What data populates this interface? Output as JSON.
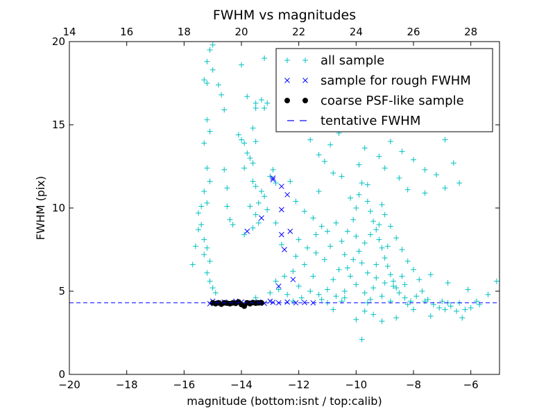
{
  "chart_data": {
    "type": "scatter",
    "title": "FWHM vs magnitudes",
    "xlabel": "magnitude (bottom:isnt / top:calib)",
    "ylabel": "FWHM (pix)",
    "xlim": [
      -20,
      -5
    ],
    "ylim": [
      0,
      20
    ],
    "x_ticks": [
      -20,
      -18,
      -16,
      -14,
      -12,
      -10,
      -8,
      -6
    ],
    "y_ticks": [
      0,
      5,
      10,
      15,
      20
    ],
    "top_axis": {
      "offset": 34,
      "ticks": [
        14,
        16,
        18,
        20,
        22,
        24,
        26,
        28
      ]
    },
    "legend_position": "top-right",
    "legend": [
      "all sample",
      "sample for rough FWHM",
      "coarse PSF-like sample",
      "tentative FWHM"
    ],
    "colors": {
      "all_sample": "#00bfbf",
      "rough_sample": "#0000ff",
      "psf_sample": "#000000",
      "tentative_line": "#0000ff"
    },
    "tentative_fwhm": 4.3,
    "series": [
      {
        "name": "all sample",
        "marker": "plus",
        "points": [
          [
            -15.0,
            19.8
          ],
          [
            -15.1,
            19.5
          ],
          [
            -15.2,
            17.5
          ],
          [
            -15.3,
            17.7
          ],
          [
            -15.2,
            18.8
          ],
          [
            -15.0,
            18.3
          ],
          [
            -14.8,
            17.4
          ],
          [
            -14.7,
            16.8
          ],
          [
            -14.6,
            15.9
          ],
          [
            -15.2,
            15.3
          ],
          [
            -15.1,
            14.6
          ],
          [
            -15.3,
            13.9
          ],
          [
            -15.2,
            12.4
          ],
          [
            -15.1,
            11.6
          ],
          [
            -15.3,
            11.0
          ],
          [
            -15.2,
            10.3
          ],
          [
            -15.4,
            10.1
          ],
          [
            -15.5,
            9.7
          ],
          [
            -15.4,
            9.0
          ],
          [
            -15.5,
            8.7
          ],
          [
            -15.3,
            8.1
          ],
          [
            -15.2,
            7.6
          ],
          [
            -15.3,
            7.2
          ],
          [
            -15.1,
            6.8
          ],
          [
            -15.6,
            7.7
          ],
          [
            -15.7,
            6.6
          ],
          [
            -15.2,
            6.1
          ],
          [
            -15.1,
            5.6
          ],
          [
            -15.0,
            5.2
          ],
          [
            -14.9,
            4.9
          ],
          [
            -14.6,
            12.3
          ],
          [
            -14.5,
            11.2
          ],
          [
            -14.5,
            10.1
          ],
          [
            -14.4,
            9.3
          ],
          [
            -14.3,
            9.0
          ],
          [
            -14.1,
            14.4
          ],
          [
            -14.0,
            14.1
          ],
          [
            -13.9,
            13.9
          ],
          [
            -13.8,
            13.3
          ],
          [
            -13.7,
            13.0
          ],
          [
            -13.6,
            12.7
          ],
          [
            -13.6,
            14.8
          ],
          [
            -13.5,
            14.0
          ],
          [
            -13.8,
            16.7
          ],
          [
            -13.5,
            16.3
          ],
          [
            -13.3,
            16.5
          ],
          [
            -13.2,
            16.0
          ],
          [
            -13.1,
            16.3
          ],
          [
            -13.9,
            12.4
          ],
          [
            -13.6,
            11.6
          ],
          [
            -13.5,
            11.3
          ],
          [
            -13.3,
            11.0
          ],
          [
            -13.2,
            10.7
          ],
          [
            -13.4,
            10.3
          ],
          [
            -13.7,
            10.1
          ],
          [
            -13.5,
            9.6
          ],
          [
            -13.4,
            9.1
          ],
          [
            -13.6,
            8.8
          ],
          [
            -13.9,
            8.4
          ],
          [
            -13.0,
            11.9
          ],
          [
            -12.9,
            12.3
          ],
          [
            -12.8,
            11.5
          ],
          [
            -13.1,
            9.9
          ],
          [
            -12.8,
            9.1
          ],
          [
            -13.2,
            19.0
          ],
          [
            -14.0,
            18.6
          ],
          [
            -13.5,
            16.0
          ],
          [
            -12.5,
            16.2
          ],
          [
            -12.4,
            15.6
          ],
          [
            -11.9,
            15.9
          ],
          [
            -11.6,
            14.1
          ],
          [
            -11.3,
            13.2
          ],
          [
            -11.1,
            12.8
          ],
          [
            -10.9,
            13.8
          ],
          [
            -10.6,
            14.5
          ],
          [
            -10.2,
            16.1
          ],
          [
            -9.9,
            15.3
          ],
          [
            -9.7,
            13.6
          ],
          [
            -9.4,
            14.9
          ],
          [
            -9.2,
            13.1
          ],
          [
            -8.8,
            14.0
          ],
          [
            -8.4,
            13.4
          ],
          [
            -8.0,
            12.9
          ],
          [
            -7.6,
            12.3
          ],
          [
            -7.2,
            12.0
          ],
          [
            -6.9,
            14.1
          ],
          [
            -6.6,
            12.7
          ],
          [
            -6.9,
            11.2
          ],
          [
            -6.4,
            11.5
          ],
          [
            -7.6,
            10.9
          ],
          [
            -8.2,
            11.1
          ],
          [
            -8.5,
            11.8
          ],
          [
            -12.3,
            11.6
          ],
          [
            -12.1,
            10.4
          ],
          [
            -11.8,
            9.8
          ],
          [
            -11.5,
            9.4
          ],
          [
            -11.2,
            8.9
          ],
          [
            -11.0,
            8.6
          ],
          [
            -12.0,
            8.1
          ],
          [
            -11.7,
            7.6
          ],
          [
            -11.4,
            7.3
          ],
          [
            -11.1,
            6.9
          ],
          [
            -11.8,
            6.6
          ],
          [
            -12.2,
            6.2
          ],
          [
            -12.5,
            5.9
          ],
          [
            -12.8,
            5.6
          ],
          [
            -12.0,
            5.3
          ],
          [
            -11.6,
            5.0
          ],
          [
            -11.3,
            4.8
          ],
          [
            -11.0,
            5.1
          ],
          [
            -10.8,
            5.7
          ],
          [
            -10.6,
            6.3
          ],
          [
            -10.4,
            7.2
          ],
          [
            -10.5,
            8.0
          ],
          [
            -10.3,
            8.6
          ],
          [
            -10.1,
            9.3
          ],
          [
            -10.0,
            10.0
          ],
          [
            -9.9,
            10.8
          ],
          [
            -9.8,
            11.5
          ],
          [
            -9.6,
            10.4
          ],
          [
            -9.5,
            9.8
          ],
          [
            -9.4,
            9.2
          ],
          [
            -9.3,
            8.7
          ],
          [
            -9.2,
            8.1
          ],
          [
            -9.1,
            7.6
          ],
          [
            -9.0,
            7.0
          ],
          [
            -8.9,
            6.5
          ],
          [
            -8.8,
            6.0
          ],
          [
            -8.7,
            5.6
          ],
          [
            -8.6,
            5.2
          ],
          [
            -8.5,
            4.9
          ],
          [
            -8.3,
            4.6
          ],
          [
            -8.1,
            4.4
          ],
          [
            -7.9,
            4.7
          ],
          [
            -7.7,
            5.0
          ],
          [
            -7.5,
            4.5
          ],
          [
            -7.3,
            4.2
          ],
          [
            -7.1,
            4.0
          ],
          [
            -6.9,
            3.9
          ],
          [
            -6.7,
            4.1
          ],
          [
            -6.5,
            3.8
          ],
          [
            -6.2,
            3.9
          ],
          [
            -6.0,
            4.0
          ],
          [
            -5.7,
            4.2
          ],
          [
            -6.1,
            5.1
          ],
          [
            -6.8,
            5.5
          ],
          [
            -7.4,
            6.0
          ],
          [
            -8.0,
            6.3
          ],
          [
            -7.8,
            5.7
          ],
          [
            -8.4,
            5.9
          ],
          [
            -9.0,
            5.5
          ],
          [
            -9.4,
            5.2
          ],
          [
            -9.7,
            4.9
          ],
          [
            -10.0,
            5.4
          ],
          [
            -10.2,
            5.9
          ],
          [
            -10.3,
            6.4
          ],
          [
            -10.1,
            6.9
          ],
          [
            -9.9,
            7.4
          ],
          [
            -9.7,
            7.9
          ],
          [
            -9.5,
            8.4
          ],
          [
            -9.2,
            9.0
          ],
          [
            -9.0,
            9.6
          ],
          [
            -8.8,
            8.9
          ],
          [
            -8.6,
            8.2
          ],
          [
            -8.4,
            7.5
          ],
          [
            -8.2,
            6.8
          ],
          [
            -8.9,
            7.7
          ],
          [
            -9.3,
            6.6
          ],
          [
            -9.6,
            6.1
          ],
          [
            -10.4,
            5.0
          ],
          [
            -10.7,
            4.7
          ],
          [
            -11.2,
            4.5
          ],
          [
            -11.9,
            4.6
          ],
          [
            -12.4,
            4.8
          ],
          [
            -12.7,
            5.1
          ],
          [
            -13.0,
            4.9
          ],
          [
            -10.9,
            7.7
          ],
          [
            -11.4,
            8.4
          ],
          [
            -10.7,
            9.1
          ],
          [
            -10.2,
            10.6
          ],
          [
            -9.6,
            11.4
          ],
          [
            -9.1,
            10.2
          ],
          [
            -10.0,
            8.3
          ],
          [
            -9.8,
            6.7
          ],
          [
            -9.3,
            5.8
          ],
          [
            -8.7,
            5.3
          ],
          [
            -8.3,
            5.4
          ],
          [
            -9.1,
            4.7
          ],
          [
            -9.5,
            4.5
          ],
          [
            -10.4,
            4.6
          ],
          [
            -11.5,
            5.9
          ],
          [
            -12.1,
            7.1
          ],
          [
            -12.6,
            7.8
          ],
          [
            -10.8,
            12.1
          ],
          [
            -11.3,
            11.0
          ],
          [
            -10.5,
            11.9
          ],
          [
            -9.0,
            12.4
          ],
          [
            -9.9,
            12.6
          ],
          [
            -9.7,
            3.8
          ],
          [
            -9.4,
            3.6
          ],
          [
            -9.1,
            3.2
          ],
          [
            -8.6,
            3.4
          ],
          [
            -8.0,
            3.9
          ],
          [
            -7.4,
            3.5
          ],
          [
            -10.8,
            3.9
          ],
          [
            -10.0,
            3.3
          ],
          [
            -9.8,
            2.1
          ],
          [
            -6.3,
            3.4
          ],
          [
            -5.4,
            4.8
          ],
          [
            -5.1,
            5.6
          ],
          [
            -6.8,
            4.3
          ],
          [
            -7.6,
            4.4
          ],
          [
            -13.5,
            4.6
          ],
          [
            -12.2,
            4.4
          ],
          [
            -11.0,
            4.3
          ],
          [
            -10.5,
            4.4
          ],
          [
            -9.6,
            4.3
          ],
          [
            -8.8,
            4.4
          ],
          [
            -8.2,
            4.2
          ],
          [
            -7.0,
            4.4
          ],
          [
            -6.4,
            4.3
          ],
          [
            -5.8,
            4.4
          ]
        ]
      },
      {
        "name": "sample for rough FWHM",
        "marker": "x",
        "points": [
          [
            -12.9,
            11.7
          ],
          [
            -12.9,
            11.8
          ],
          [
            -12.6,
            11.3
          ],
          [
            -12.4,
            10.8
          ],
          [
            -12.6,
            9.9
          ],
          [
            -13.3,
            9.4
          ],
          [
            -13.8,
            8.6
          ],
          [
            -12.3,
            8.6
          ],
          [
            -12.6,
            8.4
          ],
          [
            -12.5,
            7.5
          ],
          [
            -12.2,
            5.7
          ],
          [
            -12.7,
            5.3
          ],
          [
            -15.0,
            4.4
          ],
          [
            -14.6,
            4.35
          ],
          [
            -14.2,
            4.4
          ],
          [
            -13.8,
            4.3
          ],
          [
            -13.4,
            4.35
          ],
          [
            -13.0,
            4.4
          ],
          [
            -12.7,
            4.3
          ],
          [
            -12.4,
            4.35
          ],
          [
            -12.1,
            4.3
          ],
          [
            -11.8,
            4.32
          ],
          [
            -11.5,
            4.3
          ],
          [
            -15.1,
            4.25
          ],
          [
            -14.8,
            4.3
          ],
          [
            -14.4,
            4.28
          ],
          [
            -14.0,
            4.35
          ],
          [
            -13.6,
            4.3
          ],
          [
            -13.2,
            4.27
          ],
          [
            -12.9,
            4.33
          ]
        ]
      },
      {
        "name": "coarse PSF-like sample",
        "marker": "dot",
        "points": [
          [
            -15.0,
            4.3
          ],
          [
            -14.9,
            4.25
          ],
          [
            -14.8,
            4.3
          ],
          [
            -14.7,
            4.22
          ],
          [
            -14.6,
            4.3
          ],
          [
            -14.5,
            4.28
          ],
          [
            -14.4,
            4.25
          ],
          [
            -14.3,
            4.3
          ],
          [
            -14.2,
            4.27
          ],
          [
            -14.1,
            4.35
          ],
          [
            -14.0,
            4.2
          ],
          [
            -13.9,
            4.1
          ],
          [
            -13.8,
            4.3
          ],
          [
            -13.7,
            4.25
          ],
          [
            -13.6,
            4.32
          ],
          [
            -13.5,
            4.28
          ],
          [
            -13.4,
            4.3
          ],
          [
            -13.3,
            4.3
          ]
        ]
      }
    ]
  }
}
